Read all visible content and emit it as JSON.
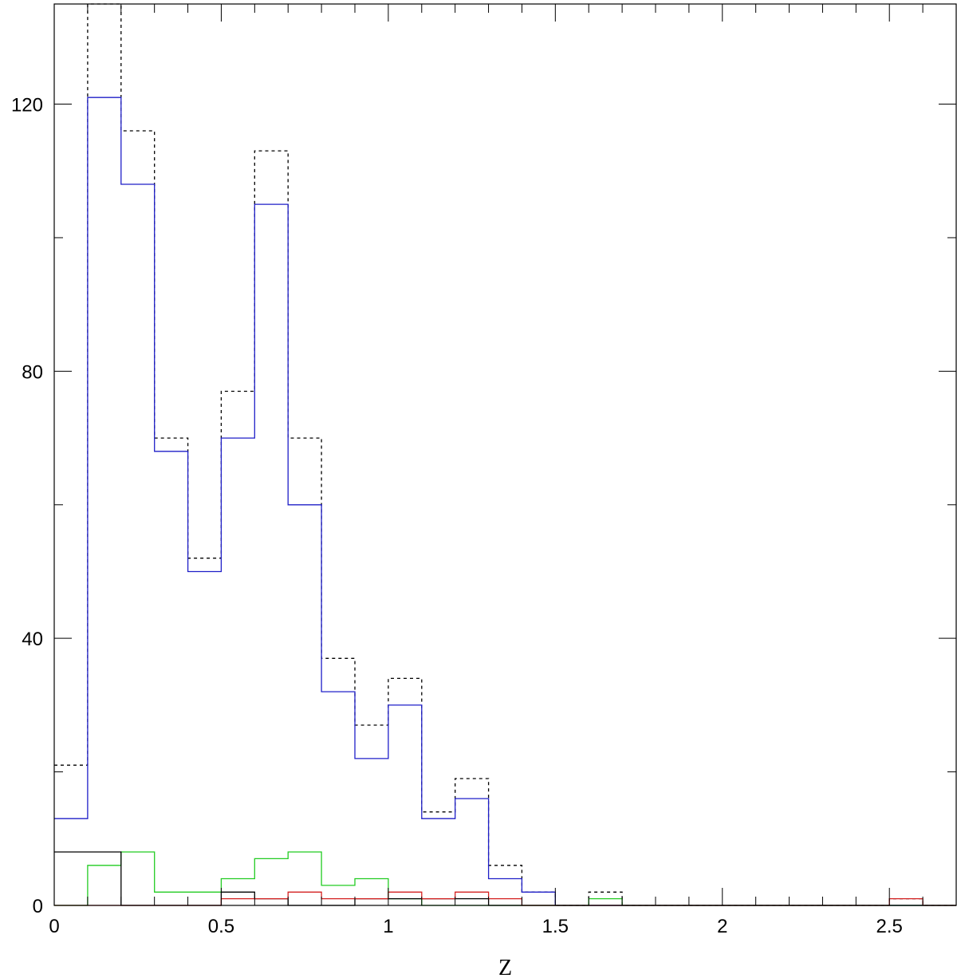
{
  "chart_data": {
    "type": "step",
    "xlabel": "Z",
    "ylabel": "",
    "title": "",
    "xlim": [
      0,
      2.7
    ],
    "ylim": [
      0,
      135
    ],
    "bin_edges": [
      0,
      0.1,
      0.2,
      0.3,
      0.4,
      0.5,
      0.6,
      0.7,
      0.8,
      0.9,
      1.0,
      1.1,
      1.2,
      1.3,
      1.4,
      1.5,
      1.6,
      1.7,
      1.8,
      1.9,
      2.0,
      2.1,
      2.2,
      2.3,
      2.4,
      2.5,
      2.6,
      2.7
    ],
    "x_ticks_major": [
      0,
      0.5,
      1,
      1.5,
      2,
      2.5
    ],
    "x_tick_labels": [
      "0",
      "0.5",
      "1",
      "1.5",
      "2",
      "2.5"
    ],
    "y_ticks_major": [
      0,
      40,
      80,
      120
    ],
    "y_tick_labels": [
      "0",
      "40",
      "80",
      "120"
    ],
    "series": [
      {
        "color": "#000000",
        "style": "dashed",
        "values": [
          21,
          135,
          116,
          70,
          52,
          77,
          113,
          70,
          37,
          27,
          34,
          14,
          19,
          6,
          2,
          0,
          2,
          0,
          0,
          0,
          0,
          0,
          0,
          0,
          0,
          1,
          0
        ]
      },
      {
        "color": "#1f1fc8",
        "style": "solid",
        "values": [
          13,
          121,
          108,
          68,
          50,
          70,
          105,
          60,
          32,
          22,
          30,
          13,
          16,
          4,
          2,
          0,
          0,
          0,
          0,
          0,
          0,
          0,
          0,
          0,
          0,
          0,
          0
        ]
      },
      {
        "color": "#22cc22",
        "style": "solid",
        "values": [
          0,
          6,
          8,
          2,
          2,
          4,
          7,
          8,
          3,
          4,
          1,
          0,
          0,
          0,
          0,
          0,
          1,
          0,
          0,
          0,
          0,
          0,
          0,
          0,
          0,
          0,
          0
        ]
      },
      {
        "color": "#000000",
        "style": "solid",
        "values": [
          8,
          8,
          0,
          0,
          0,
          2,
          1,
          0,
          0,
          1,
          1,
          1,
          1,
          0,
          0,
          0,
          0,
          0,
          0,
          0,
          0,
          0,
          0,
          0,
          0,
          0,
          0
        ]
      },
      {
        "color": "#d42020",
        "style": "solid",
        "values": [
          0,
          0,
          0,
          0,
          0,
          1,
          1,
          2,
          1,
          1,
          2,
          1,
          2,
          1,
          0,
          0,
          0,
          0,
          0,
          0,
          0,
          0,
          0,
          0,
          0,
          1,
          0
        ]
      }
    ]
  }
}
